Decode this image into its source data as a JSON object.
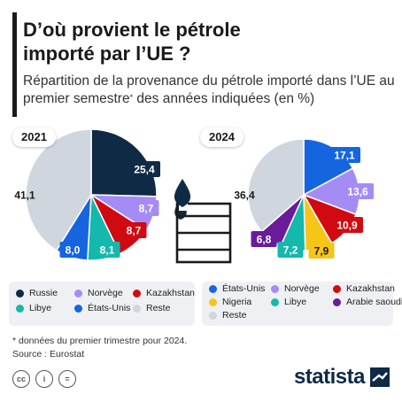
{
  "title_line1": "D’où provient le pétrole",
  "title_line2": "importé par l’UE ?",
  "subtitle_part1": "Répartition de la provenance du pétrole importé dans l’UE au premier semestre",
  "subtitle_sup": "*",
  "subtitle_part2": " des années indiquées (en %)",
  "colors": {
    "russie": "#0f2a45",
    "norvege": "#a58cf5",
    "kazakhstan": "#d10a11",
    "libye": "#14b8ac",
    "etats_unis": "#1565e0",
    "reste": "#cfd6de",
    "nigeria": "#f5c518",
    "arabie_saoudite": "#6a1b9a"
  },
  "chart_data": [
    {
      "type": "pie",
      "title": "2021",
      "slices": [
        {
          "name": "Russie",
          "value": 25.4,
          "label": "25,4",
          "color": "#0f2a45"
        },
        {
          "name": "Norvège",
          "value": 8.7,
          "label": "8,7",
          "color": "#a58cf5"
        },
        {
          "name": "Kazakhstan",
          "value": 8.7,
          "label": "8,7",
          "color": "#d10a11"
        },
        {
          "name": "Libye",
          "value": 8.1,
          "label": "8,1",
          "color": "#14b8ac"
        },
        {
          "name": "États-Unis",
          "value": 8.0,
          "label": "8,0",
          "color": "#1565e0"
        },
        {
          "name": "Reste",
          "value": 41.1,
          "label": "41,1",
          "color": "#cfd6de"
        }
      ]
    },
    {
      "type": "pie",
      "title": "2024",
      "slices": [
        {
          "name": "États-Unis",
          "value": 17.1,
          "label": "17,1",
          "color": "#1565e0"
        },
        {
          "name": "Norvège",
          "value": 13.6,
          "label": "13,6",
          "color": "#a58cf5"
        },
        {
          "name": "Kazakhstan",
          "value": 10.9,
          "label": "10,9",
          "color": "#d10a11"
        },
        {
          "name": "Nigeria",
          "value": 7.9,
          "label": "7,9",
          "color": "#f5c518"
        },
        {
          "name": "Libye",
          "value": 7.2,
          "label": "7,2",
          "color": "#14b8ac"
        },
        {
          "name": "Arabie saoudite",
          "value": 6.8,
          "label": "6,8",
          "color": "#6a1b9a"
        },
        {
          "name": "Reste",
          "value": 36.4,
          "label": "36,4",
          "color": "#cfd6de"
        }
      ]
    }
  ],
  "legend_2021": [
    {
      "label": "Russie",
      "color": "#0f2a45"
    },
    {
      "label": "Norvège",
      "color": "#a58cf5"
    },
    {
      "label": "Kazakhstan",
      "color": "#d10a11"
    },
    {
      "label": "Libye",
      "color": "#14b8ac"
    },
    {
      "label": "États-Unis",
      "color": "#1565e0"
    },
    {
      "label": "Reste",
      "color": "#cfd6de"
    }
  ],
  "legend_2024": [
    {
      "label": "États-Unis",
      "color": "#1565e0"
    },
    {
      "label": "Norvège",
      "color": "#a58cf5"
    },
    {
      "label": "Kazakhstan",
      "color": "#d10a11"
    },
    {
      "label": "Nigeria",
      "color": "#f5c518"
    },
    {
      "label": "Libye",
      "color": "#14b8ac"
    },
    {
      "label": "Arabie saoudite",
      "color": "#6a1b9a"
    },
    {
      "label": "Reste",
      "color": "#cfd6de"
    }
  ],
  "note": "* données du premier trimestre pour 2024.",
  "source": "Source : Eurostat",
  "license_icons": [
    "cc-icon",
    "by-icon",
    "nd-icon"
  ],
  "license_glyphs": [
    "cc",
    "i",
    "="
  ],
  "brand": "statista",
  "decorative_icon": "oil-barrel-icon"
}
